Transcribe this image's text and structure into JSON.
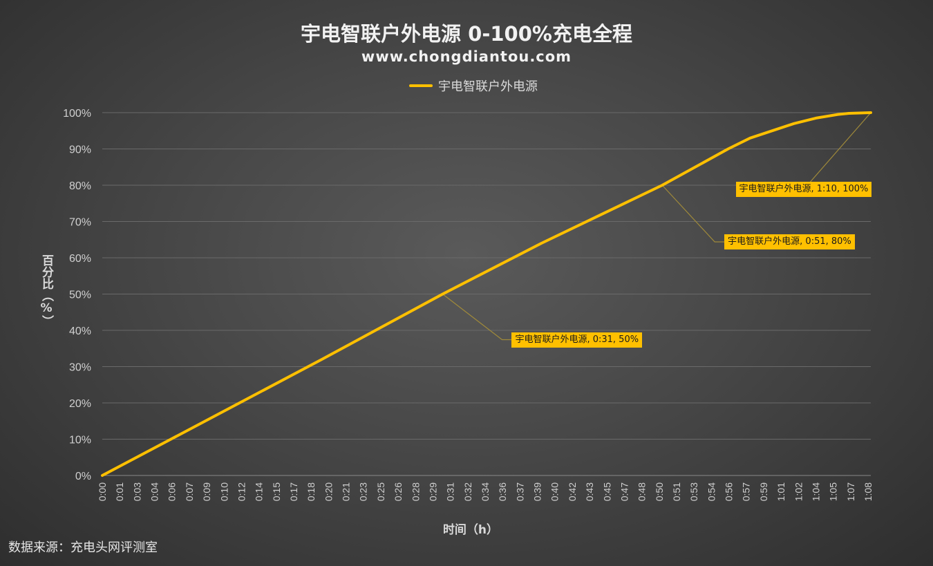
{
  "chart_data": {
    "type": "line",
    "title": "宇电智联户外电源 0-100%充电全程",
    "subtitle": "www.chongdiantou.com",
    "xlabel": "时间（h）",
    "ylabel": "百分比（%）",
    "ylim": [
      0,
      100
    ],
    "y_ticks": [
      "0%",
      "10%",
      "20%",
      "30%",
      "40%",
      "50%",
      "60%",
      "70%",
      "80%",
      "90%",
      "100%"
    ],
    "x_ticks": [
      "0:00",
      "0:01",
      "0:03",
      "0:04",
      "0:06",
      "0:07",
      "0:09",
      "0:10",
      "0:12",
      "0:14",
      "0:15",
      "0:17",
      "0:18",
      "0:20",
      "0:21",
      "0:23",
      "0:25",
      "0:26",
      "0:28",
      "0:29",
      "0:31",
      "0:32",
      "0:34",
      "0:36",
      "0:37",
      "0:39",
      "0:40",
      "0:42",
      "0:43",
      "0:45",
      "0:47",
      "0:48",
      "0:50",
      "0:51",
      "0:53",
      "0:54",
      "0:56",
      "0:57",
      "0:59",
      "1:01",
      "1:02",
      "1:04",
      "1:05",
      "1:07",
      "1:08"
    ],
    "grid": true,
    "legend_position": "top",
    "series": [
      {
        "name": "宇电智联户外电源",
        "color": "#ffc000",
        "x_minutes": [
          0,
          10,
          20,
          31,
          40,
          51,
          57,
          59,
          61,
          63,
          65,
          67,
          68,
          70
        ],
        "y_percent": [
          0,
          16,
          32,
          50,
          64,
          80,
          90,
          93,
          95,
          97,
          98.5,
          99.5,
          99.8,
          100
        ]
      }
    ],
    "annotations": [
      {
        "label": "宇电智联户外电源, 0:31, 50%",
        "x_minutes": 31,
        "y_percent": 50
      },
      {
        "label": "宇电智联户外电源, 0:51, 80%",
        "x_minutes": 51,
        "y_percent": 80
      },
      {
        "label": "宇电智联户外电源, 1:10, 100%",
        "x_minutes": 70,
        "y_percent": 100
      }
    ]
  },
  "legend_label": "宇电智联户外电源",
  "source_note": "数据来源：充电头网评测室"
}
